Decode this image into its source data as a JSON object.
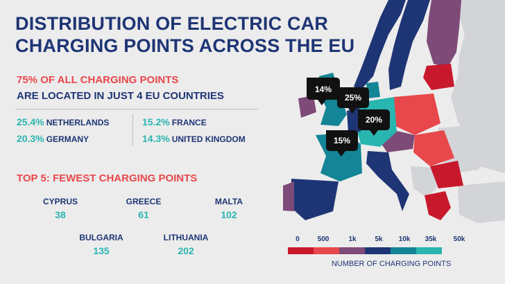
{
  "title_line1": "DISTRIBUTION OF ELECTRIC CAR",
  "title_line2": "CHARGING POINTS ACROSS THE EU",
  "headline1": "75% OF ALL CHARGING POINTS",
  "headline2": "ARE LOCATED IN JUST 4 EU COUNTRIES",
  "top4": [
    {
      "pct": "25.4%",
      "country": "NETHERLANDS"
    },
    {
      "pct": "20.3%",
      "country": "GERMANY"
    },
    {
      "pct": "15.2%",
      "country": "FRANCE"
    },
    {
      "pct": "14.3%",
      "country": "UNITED KINGDOM"
    }
  ],
  "fewest_title": "TOP 5: FEWEST CHARGING POINTS",
  "fewest": [
    {
      "country": "CYPRUS",
      "value": "38"
    },
    {
      "country": "GREECE",
      "value": "61"
    },
    {
      "country": "MALTA",
      "value": "102"
    },
    {
      "country": "BULGARIA",
      "value": "135"
    },
    {
      "country": "LITHUANIA",
      "value": "202"
    }
  ],
  "map_callouts": [
    {
      "label": "14%"
    },
    {
      "label": "25%"
    },
    {
      "label": "20%"
    },
    {
      "label": "15%"
    }
  ],
  "legend": {
    "ticks": [
      "0",
      "500",
      "1k",
      "5k",
      "10k",
      "35k",
      "50k"
    ],
    "title": "NUMBER OF CHARGING POINTS",
    "colors": [
      "#c8182c",
      "#e8474b",
      "#7e4a78",
      "#1e3575",
      "#138596",
      "#29b5b0"
    ]
  },
  "chart_data": {
    "type": "map",
    "scale_bins": [
      "0-500",
      "500-1k",
      "1k-5k",
      "5k-10k",
      "10k-35k",
      "35k-50k"
    ],
    "share_of_total_pct": [
      {
        "country": "NETHERLANDS",
        "value": 25.4
      },
      {
        "country": "GERMANY",
        "value": 20.3
      },
      {
        "country": "FRANCE",
        "value": 15.2
      },
      {
        "country": "UNITED KINGDOM",
        "value": 14.3
      }
    ],
    "fewest_points": [
      {
        "country": "CYPRUS",
        "value": 38
      },
      {
        "country": "GREECE",
        "value": 61
      },
      {
        "country": "MALTA",
        "value": 102
      },
      {
        "country": "BULGARIA",
        "value": 135
      },
      {
        "country": "LITHUANIA",
        "value": 202
      }
    ]
  }
}
